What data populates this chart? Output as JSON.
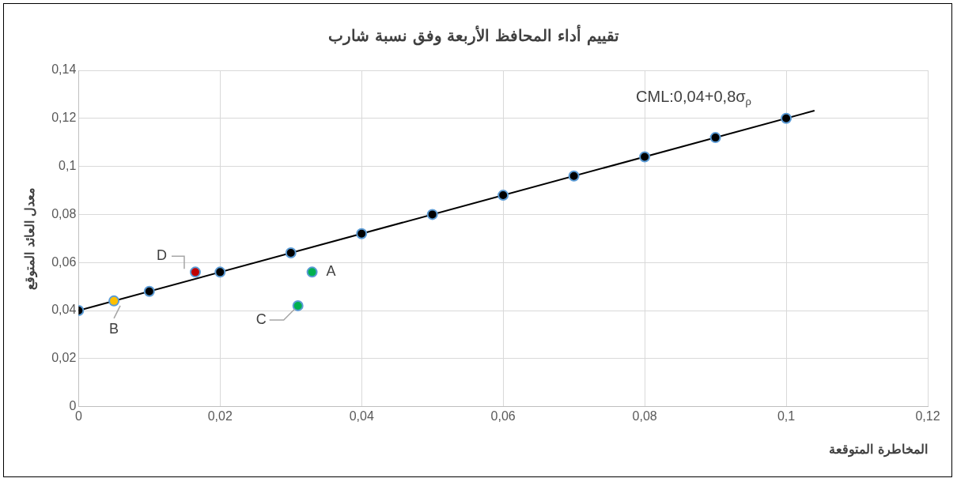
{
  "chart_data": {
    "type": "scatter",
    "title": "تقييم أداء المحافظ الأربعة وفق نسبة شارب",
    "xlabel": "المخاطرة المتوقعة",
    "ylabel": "معدل العائد المتوقع",
    "series": [
      {
        "type": "line",
        "color": "#000000",
        "marker": "none",
        "line_style": "solid",
        "x": [
          0,
          0.104
        ],
        "values": [
          0.04,
          0.1232
        ]
      },
      {
        "type": "scatter",
        "color": "#000000",
        "marker": "circle",
        "x": [
          0,
          0.01,
          0.02,
          0.03,
          0.04,
          0.05,
          0.06,
          0.07,
          0.08,
          0.09,
          0.1
        ],
        "values": [
          0.04,
          0.048,
          0.056,
          0.064,
          0.072,
          0.08,
          0.088,
          0.096,
          0.104,
          0.112,
          0.12
        ]
      },
      {
        "color": "#00b050",
        "colors": [
          "#00b050",
          "#ffc000",
          "#00b050",
          "#c00000"
        ],
        "marker": "circle",
        "x": [
          0.033,
          0.005,
          0.031,
          0.0165
        ],
        "values": [
          0.056,
          0.044,
          0.042,
          0.056
        ]
      }
    ],
    "xlim": [
      0,
      0.12
    ],
    "xticks": [
      0,
      {
        "value": 0.02,
        "label": "0,02"
      },
      {
        "value": 0.04,
        "label": "0,04"
      },
      {
        "value": 0.06,
        "label": "0,06"
      },
      {
        "value": 0.08,
        "label": "0,08"
      },
      {
        "value": 0.1,
        "label": "0,1"
      },
      {
        "value": 0.12,
        "label": "0,12"
      }
    ],
    "ylim": [
      0,
      0.14
    ],
    "yticks": [
      0,
      {
        "value": 0.02,
        "label": "0,02"
      },
      {
        "value": 0.04,
        "label": "0,04"
      },
      {
        "value": 0.06,
        "label": "0,06"
      },
      {
        "value": 0.08,
        "label": "0,08"
      },
      {
        "value": 0.1,
        "label": "0,1"
      },
      {
        "value": 0.12,
        "label": "0,12"
      },
      {
        "value": 0.14,
        "label": "0,14"
      }
    ],
    "annotations": [
      {
        "text": "A",
        "x": 0.033,
        "y": 0.056
      },
      {
        "text": "B",
        "x": 0.005,
        "y": 0.044
      },
      {
        "text": "C",
        "x": 0.031,
        "y": 0.042
      },
      {
        "text": "D",
        "x": 0.0165,
        "y": 0.056
      },
      {
        "text": "CML:0,04+0,8σ$_{ρ}$",
        "x": 0.1,
        "y": 0.12
      }
    ],
    "grid": true,
    "legend": false
  }
}
